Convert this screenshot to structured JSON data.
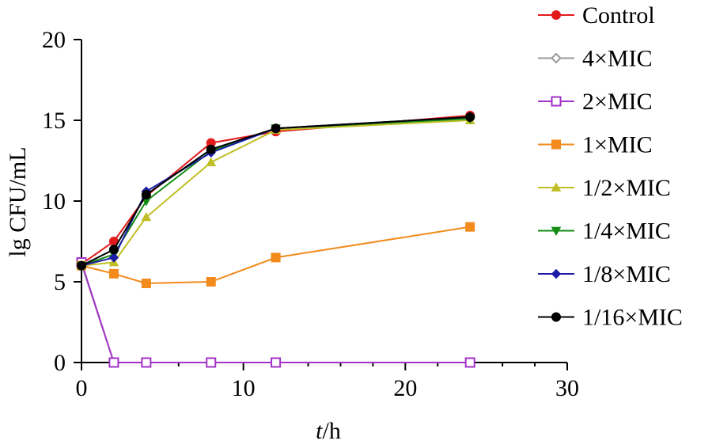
{
  "chart_data": {
    "type": "line",
    "title": "",
    "xlabel_italic": "t",
    "xlabel_rest": "/h",
    "ylabel": "lg CFU/mL",
    "xlim": [
      0,
      30
    ],
    "ylim": [
      0,
      20
    ],
    "xticks": [
      0,
      10,
      20,
      30
    ],
    "xtick_labels": [
      "0",
      "10",
      "20",
      "30"
    ],
    "yticks": [
      0,
      5,
      10,
      15,
      20
    ],
    "ytick_labels": [
      "0",
      "5",
      "10",
      "15",
      "20"
    ],
    "grid": false,
    "legend_position": "top-right",
    "series": [
      {
        "name": "Control",
        "color": "#e31a1c",
        "marker": "circle",
        "x": [
          0,
          2,
          4,
          8,
          12,
          24
        ],
        "y": [
          6.1,
          7.5,
          10.3,
          13.6,
          14.3,
          15.3
        ]
      },
      {
        "name": "4×MIC",
        "color": "#999999",
        "marker": "diamond-open",
        "x": [
          0,
          2,
          4,
          8,
          12,
          24
        ],
        "y": [
          6.1,
          0,
          0,
          0,
          0,
          0
        ]
      },
      {
        "name": "2×MIC",
        "color": "#a232c8",
        "marker": "square-open",
        "x": [
          0,
          2,
          4,
          8,
          12,
          24
        ],
        "y": [
          6.2,
          0,
          0,
          0,
          0,
          0
        ]
      },
      {
        "name": "1×MIC",
        "color": "#f28a1c",
        "marker": "square",
        "x": [
          0,
          2,
          4,
          8,
          12,
          24
        ],
        "y": [
          6.0,
          5.5,
          4.9,
          5.0,
          6.5,
          8.4
        ]
      },
      {
        "name": "1/2×MIC",
        "color": "#bfbf25",
        "marker": "triangle-up",
        "x": [
          0,
          2,
          4,
          8,
          12,
          24
        ],
        "y": [
          6.0,
          6.2,
          9.0,
          12.4,
          14.4,
          15.0
        ]
      },
      {
        "name": "1/4×MIC",
        "color": "#148c14",
        "marker": "triangle-down",
        "x": [
          0,
          2,
          4,
          8,
          12,
          24
        ],
        "y": [
          6.0,
          6.7,
          10.0,
          13.1,
          14.5,
          15.1
        ]
      },
      {
        "name": "1/8×MIC",
        "color": "#1c1ca6",
        "marker": "diamond",
        "x": [
          0,
          2,
          4,
          8,
          12,
          24
        ],
        "y": [
          6.0,
          6.5,
          10.6,
          13.0,
          14.5,
          15.2
        ]
      },
      {
        "name": "1/16×MIC",
        "color": "#000000",
        "marker": "circle",
        "x": [
          0,
          2,
          4,
          8,
          12,
          24
        ],
        "y": [
          6.0,
          7.0,
          10.4,
          13.2,
          14.5,
          15.2
        ]
      }
    ]
  }
}
